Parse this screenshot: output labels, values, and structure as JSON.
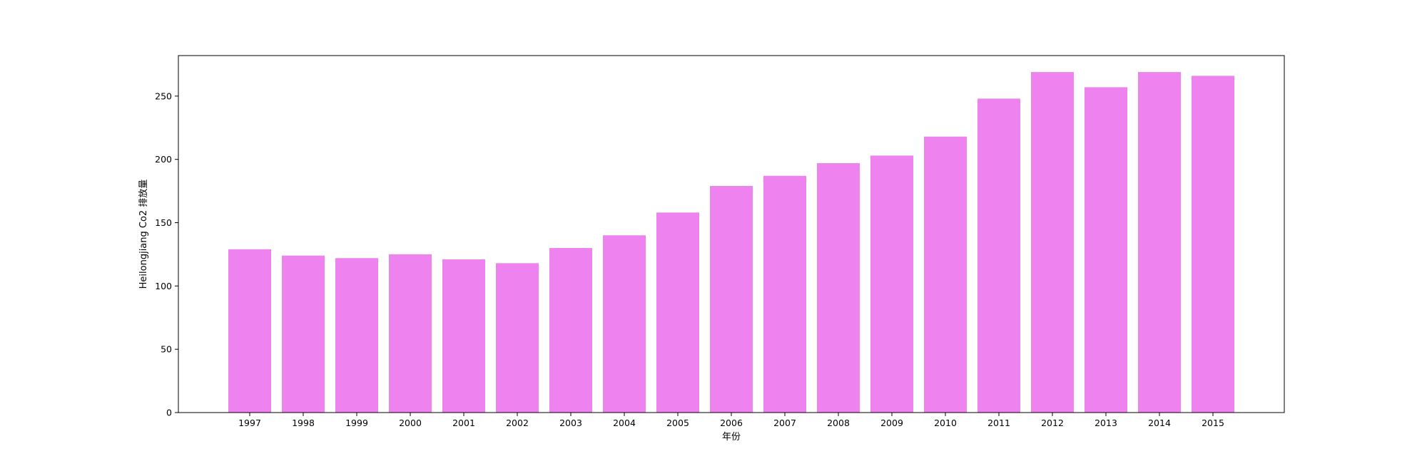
{
  "chart_data": {
    "type": "bar",
    "title": "",
    "xlabel": "年份",
    "ylabel": "Heilongjiang Co2 排放量",
    "categories": [
      "1997",
      "1998",
      "1999",
      "2000",
      "2001",
      "2002",
      "2003",
      "2004",
      "2005",
      "2006",
      "2007",
      "2008",
      "2009",
      "2010",
      "2011",
      "2012",
      "2013",
      "2014",
      "2015"
    ],
    "values": [
      129,
      124,
      122,
      125,
      121,
      118,
      130,
      140,
      158,
      179,
      187,
      197,
      203,
      218,
      248,
      269,
      257,
      269,
      266
    ],
    "ylim": [
      0,
      282
    ],
    "yticks": [
      0,
      50,
      100,
      150,
      200,
      250
    ],
    "grid": false,
    "legend": "none",
    "colors": {
      "bar": "#ee82ee",
      "axes": "#000000",
      "background": "#ffffff"
    }
  }
}
